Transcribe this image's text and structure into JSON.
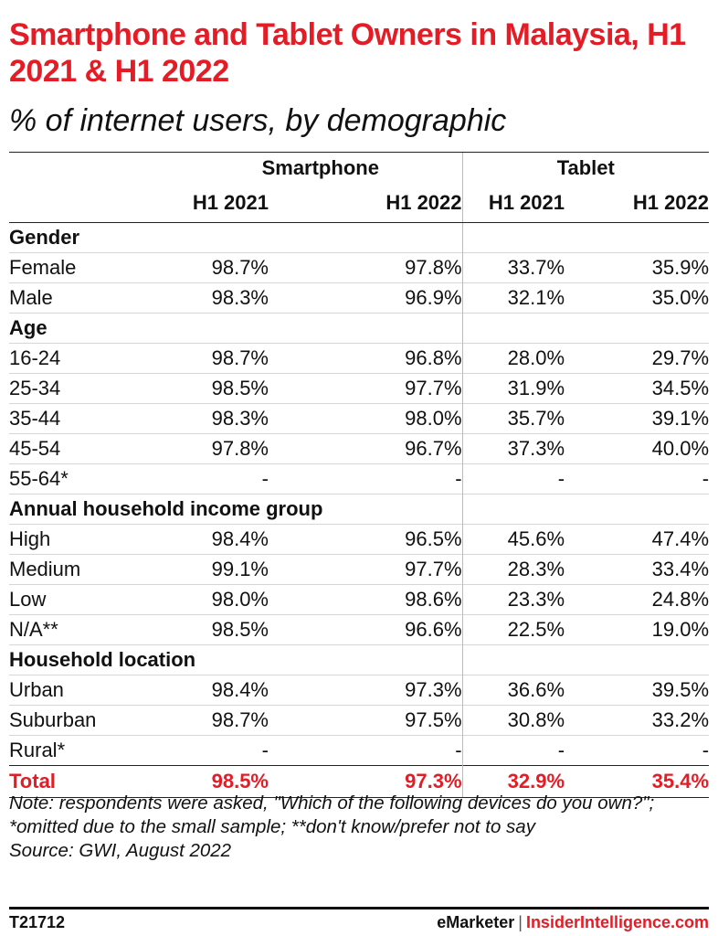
{
  "title": "Smartphone and Tablet Owners in Malaysia, H1 2021 & H1 2022",
  "subtitle": "% of internet users, by demographic",
  "chart_data": {
    "type": "table",
    "column_groups": [
      "Smartphone",
      "Tablet"
    ],
    "columns": [
      "H1 2021",
      "H1 2022",
      "H1 2021",
      "H1 2022"
    ],
    "sections": [
      {
        "name": "Gender",
        "rows": [
          {
            "label": "Female",
            "values": [
              "98.7%",
              "97.8%",
              "33.7%",
              "35.9%"
            ]
          },
          {
            "label": "Male",
            "values": [
              "98.3%",
              "96.9%",
              "32.1%",
              "35.0%"
            ]
          }
        ]
      },
      {
        "name": "Age",
        "rows": [
          {
            "label": "16-24",
            "values": [
              "98.7%",
              "96.8%",
              "28.0%",
              "29.7%"
            ]
          },
          {
            "label": "25-34",
            "values": [
              "98.5%",
              "97.7%",
              "31.9%",
              "34.5%"
            ]
          },
          {
            "label": "35-44",
            "values": [
              "98.3%",
              "98.0%",
              "35.7%",
              "39.1%"
            ]
          },
          {
            "label": "45-54",
            "values": [
              "97.8%",
              "96.7%",
              "37.3%",
              "40.0%"
            ]
          },
          {
            "label": "55-64*",
            "values": [
              "-",
              "-",
              "-",
              "-"
            ]
          }
        ]
      },
      {
        "name": "Annual household income group",
        "rows": [
          {
            "label": "High",
            "values": [
              "98.4%",
              "96.5%",
              "45.6%",
              "47.4%"
            ]
          },
          {
            "label": "Medium",
            "values": [
              "99.1%",
              "97.7%",
              "28.3%",
              "33.4%"
            ]
          },
          {
            "label": "Low",
            "values": [
              "98.0%",
              "98.6%",
              "23.3%",
              "24.8%"
            ]
          },
          {
            "label": "N/A**",
            "values": [
              "98.5%",
              "96.6%",
              "22.5%",
              "19.0%"
            ]
          }
        ]
      },
      {
        "name": "Household location",
        "rows": [
          {
            "label": "Urban",
            "values": [
              "98.4%",
              "97.3%",
              "36.6%",
              "39.5%"
            ]
          },
          {
            "label": "Suburban",
            "values": [
              "98.7%",
              "97.5%",
              "30.8%",
              "33.2%"
            ]
          },
          {
            "label": "Rural*",
            "values": [
              "-",
              "-",
              "-",
              "-"
            ]
          }
        ]
      }
    ],
    "total": {
      "label": "Total",
      "values": [
        "98.5%",
        "97.3%",
        "32.9%",
        "35.4%"
      ]
    }
  },
  "note": "Note: respondents were asked, \"Which of the following devices do you own?\"; *omitted due to the small sample; **don't know/prefer not to say",
  "source": "Source: GWI, August 2022",
  "footer": {
    "code": "T21712",
    "brand_left": "eMarketer",
    "brand_sep": "|",
    "brand_right": "InsiderIntelligence.com"
  },
  "colors": {
    "accent": "#e31c25",
    "text": "#111111",
    "rule": "#222222"
  }
}
